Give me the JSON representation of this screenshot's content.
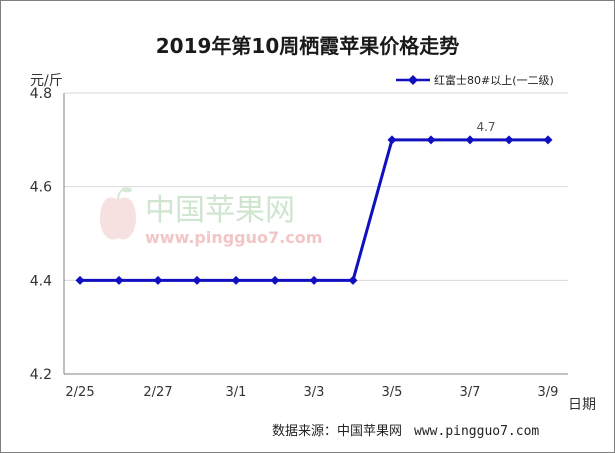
{
  "title": "2019年第10周栖霞苹果价格走势",
  "source": {
    "label": "数据来源：中国苹果网",
    "url": "www.pingguo7.com"
  },
  "watermark": {
    "name": "中国苹果网",
    "url": "www.pingguo7.com"
  },
  "chart_data": {
    "type": "line",
    "title": "2019年第10周栖霞苹果价格走势",
    "ylabel": "元/斤",
    "xlabel": "日期",
    "ylim": [
      4.2,
      4.8
    ],
    "yticks": [
      "4.2",
      "4.4",
      "4.6",
      "4.8"
    ],
    "x_tick_labels": [
      "2/25",
      "2/27",
      "3/1",
      "3/3",
      "3/5",
      "3/7",
      "3/9"
    ],
    "grid": "horizontal",
    "legend_position": "top-right",
    "series": [
      {
        "name": "红富士80#以上(一二级)",
        "color": "#1010c0",
        "values": [
          4.4,
          4.4,
          4.4,
          4.4,
          4.4,
          4.4,
          4.4,
          4.4,
          4.7,
          4.7,
          4.7,
          4.7,
          4.7
        ]
      }
    ],
    "annotations": [
      {
        "index": 10,
        "text": "4.7"
      }
    ]
  }
}
